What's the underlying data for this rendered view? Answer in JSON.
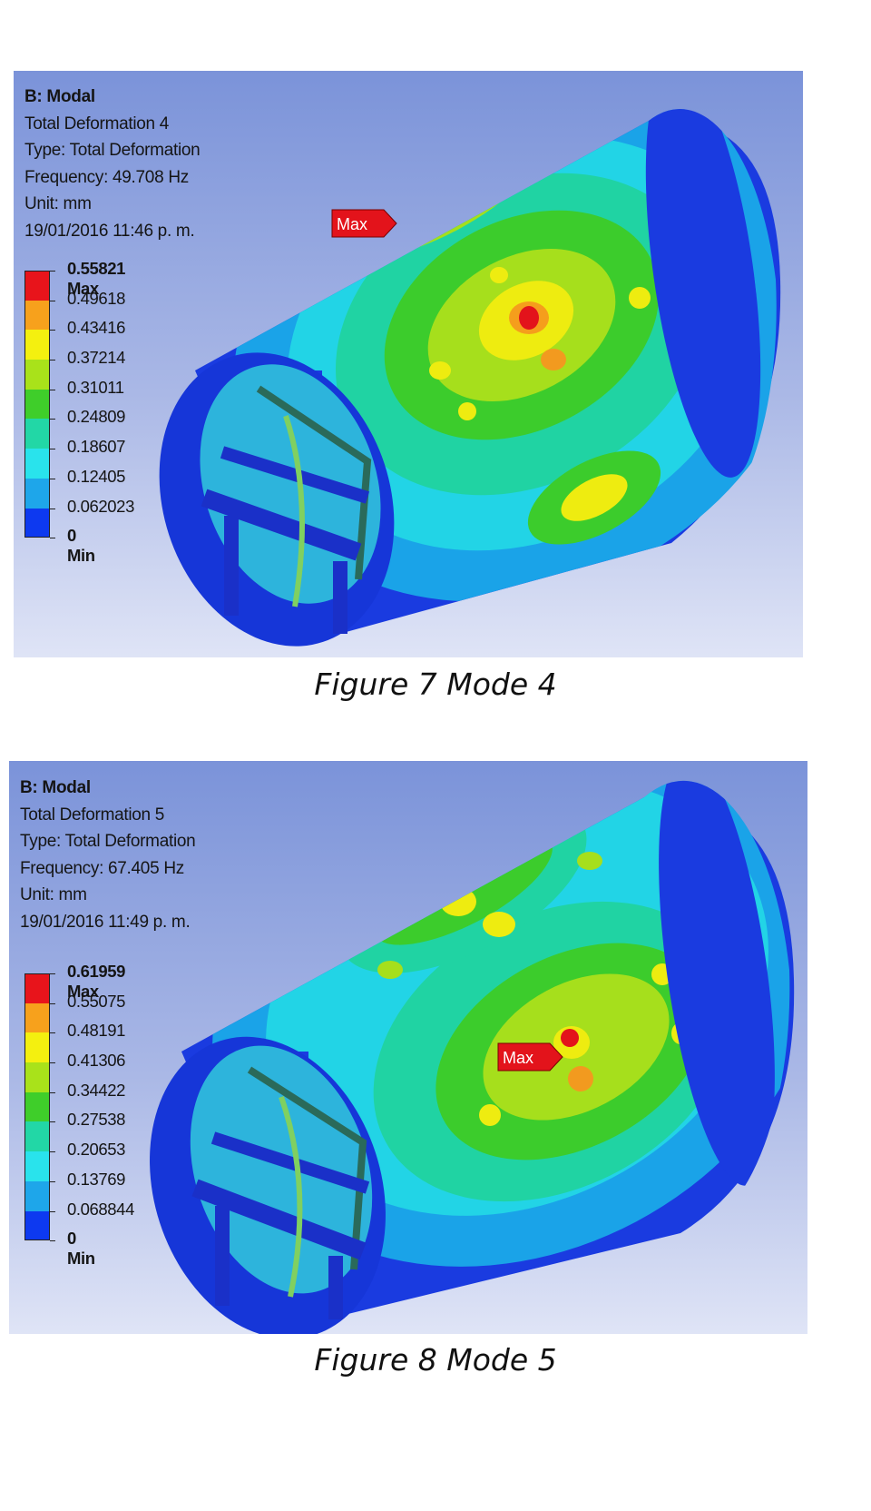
{
  "figures": [
    {
      "info": {
        "title": "B: Modal",
        "result": "Total Deformation 4",
        "type": "Type: Total Deformation",
        "frequency": "Frequency: 49.708 Hz",
        "unit": "Unit: mm",
        "date": "19/01/2016 11:46 p. m."
      },
      "legend": [
        "0.55821 Max",
        "0.49618",
        "0.43416",
        "0.37214",
        "0.31011",
        "0.24809",
        "0.18607",
        "0.12405",
        "0.062023",
        "0 Min"
      ],
      "max_tag": "Max",
      "caption": "Figure 7 Mode 4"
    },
    {
      "info": {
        "title": "B: Modal",
        "result": "Total Deformation 5",
        "type": "Type: Total Deformation",
        "frequency": "Frequency: 67.405 Hz",
        "unit": "Unit: mm",
        "date": "19/01/2016 11:49 p. m."
      },
      "legend": [
        "0.61959 Max",
        "0.55075",
        "0.48191",
        "0.41306",
        "0.34422",
        "0.27538",
        "0.20653",
        "0.13769",
        "0.068844",
        "0 Min"
      ],
      "max_tag": "Max",
      "caption": "Figure 8 Mode 5"
    }
  ],
  "legend_colors": [
    "#e8141b",
    "#f7a11c",
    "#f4f00f",
    "#a9e21a",
    "#3fce2a",
    "#22d7a6",
    "#29e3ec",
    "#1ea6ea",
    "#0d39f0"
  ]
}
